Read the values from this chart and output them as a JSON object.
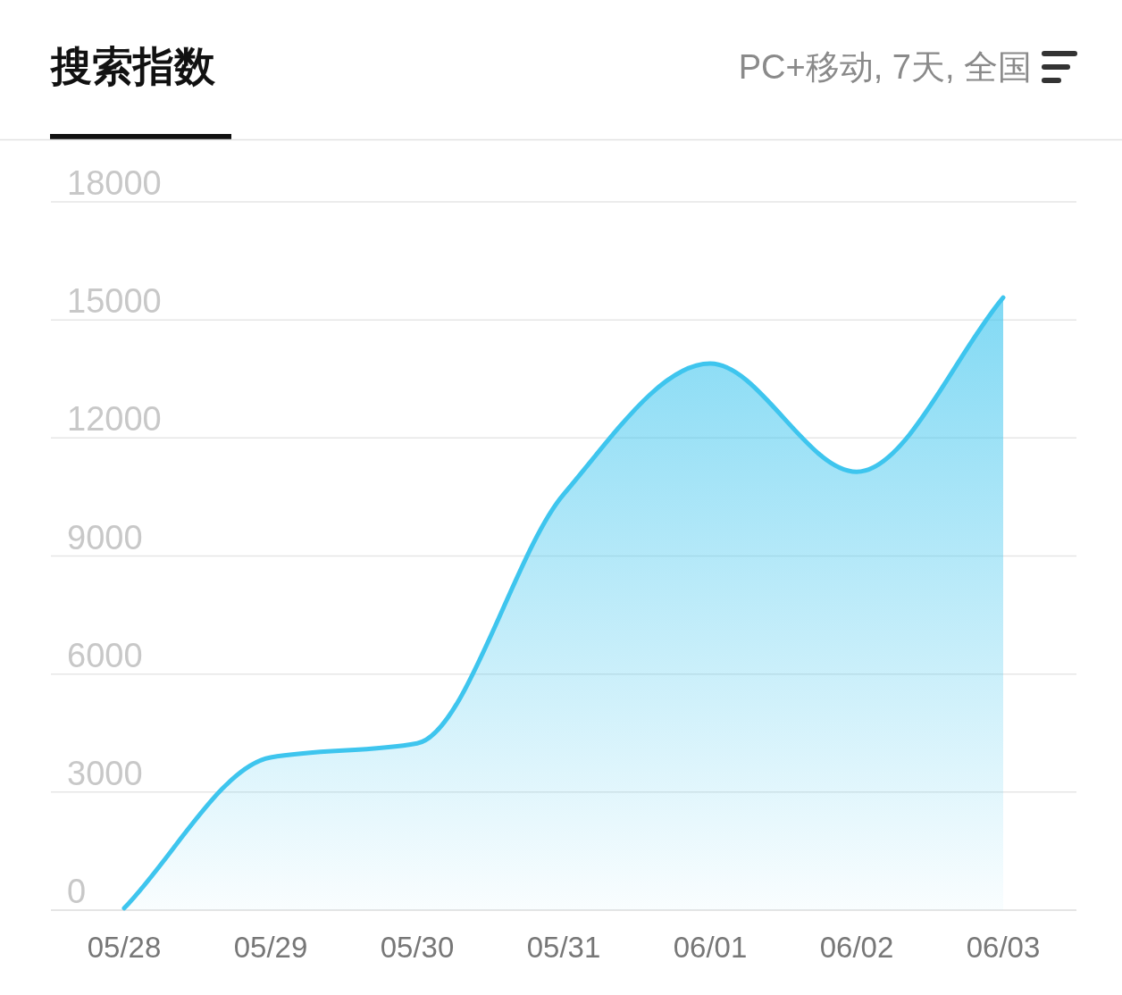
{
  "chart_data": {
    "type": "area",
    "title": "搜索指数",
    "subtitle": "PC+移动, 7天, 全国",
    "categories": [
      "05/28",
      "05/29",
      "05/30",
      "05/31",
      "06/01",
      "06/02",
      "06/03"
    ],
    "values": [
      50,
      3880,
      4240,
      10570,
      13890,
      11140,
      15570
    ],
    "color": "#3ec5ee",
    "ylim": [
      0,
      18000
    ],
    "yticks": [
      0,
      3000,
      6000,
      9000,
      12000,
      15000,
      18000
    ],
    "grid": "y"
  }
}
